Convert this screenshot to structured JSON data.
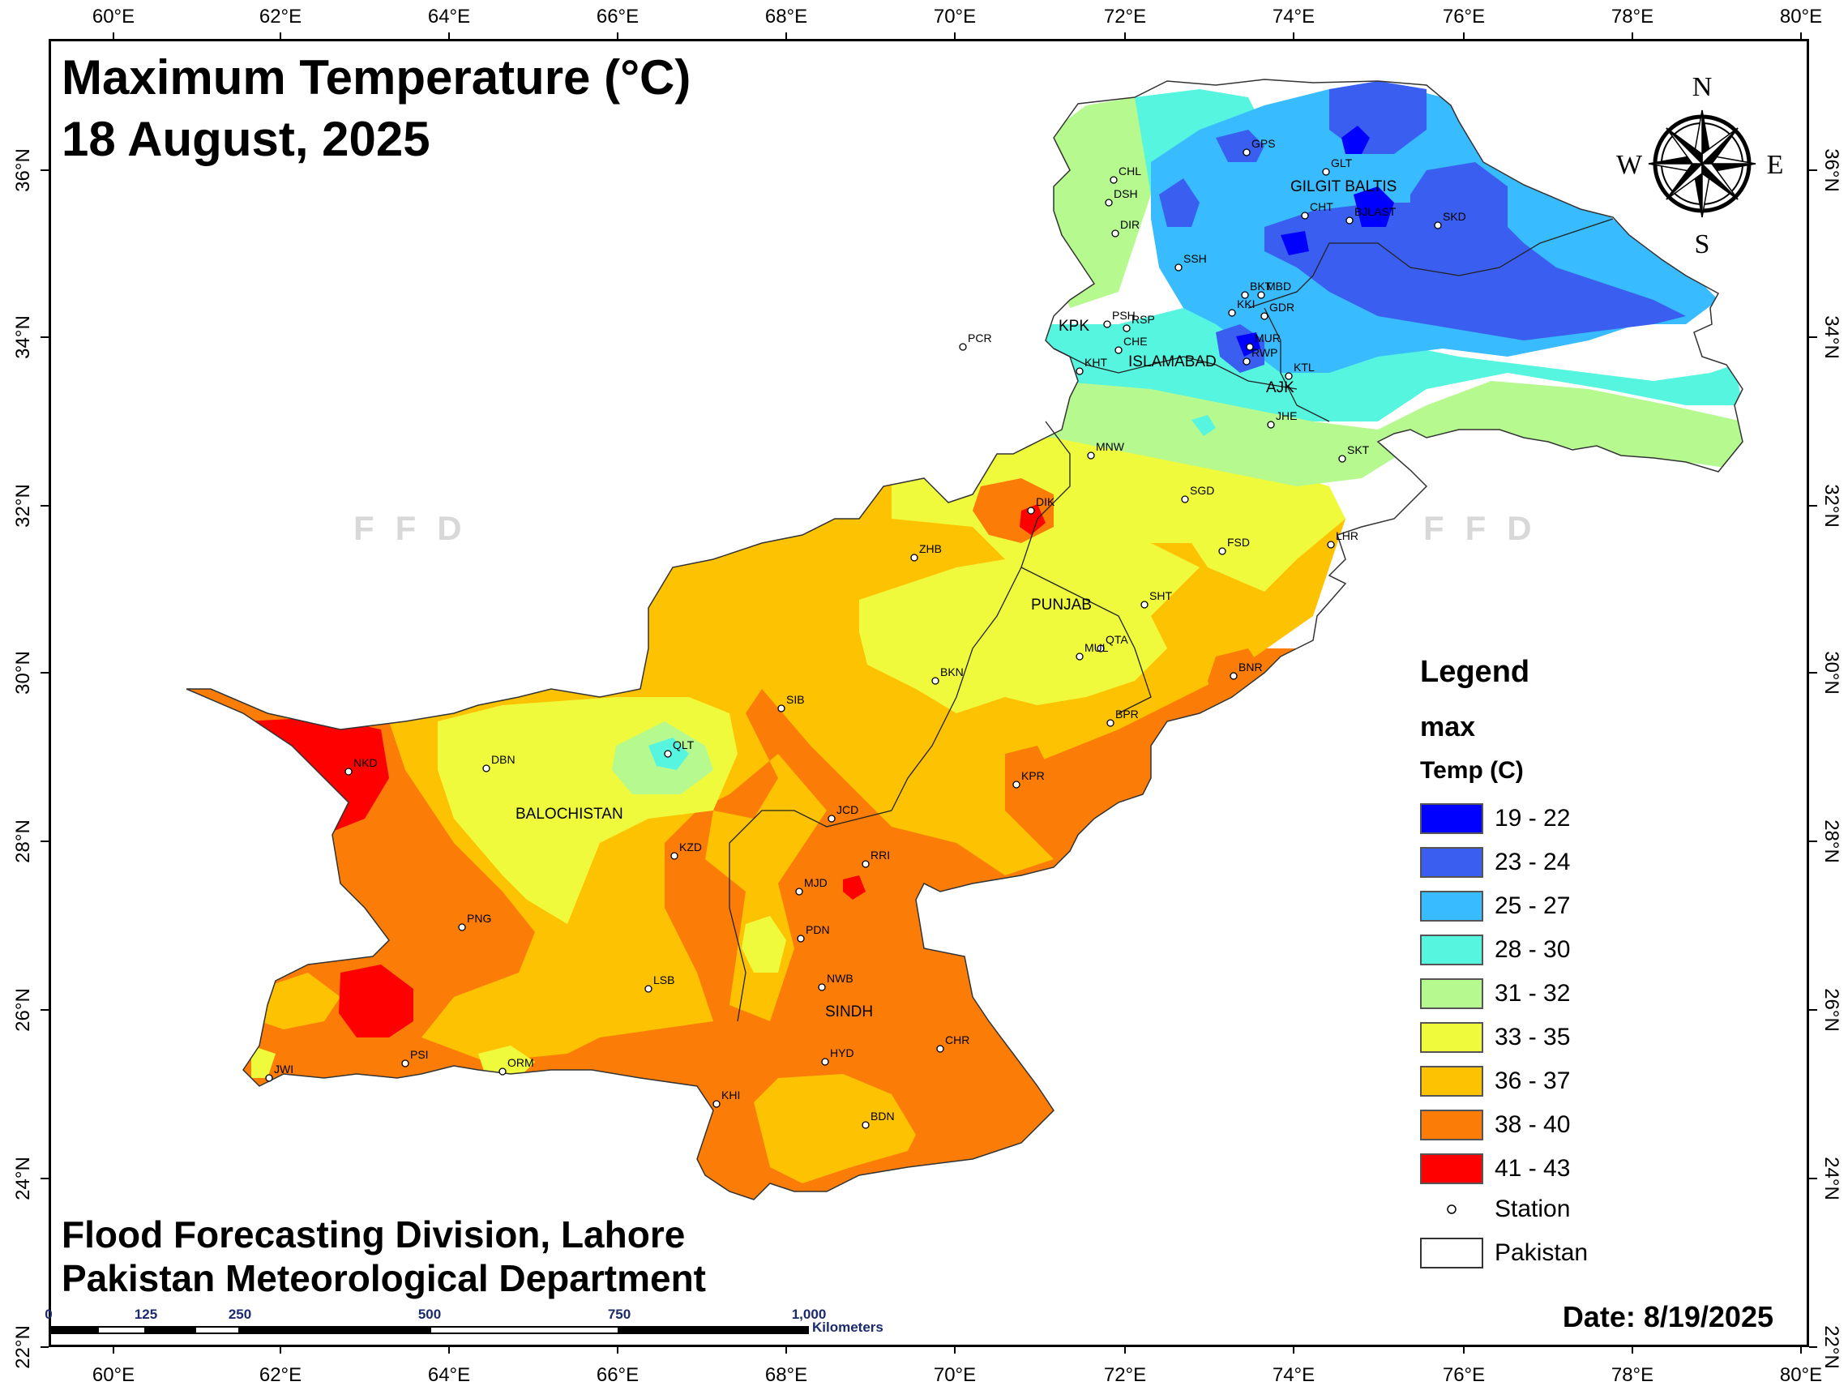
{
  "map": {
    "title_line1": "Maximum Temperature (°C)",
    "title_line2": "18 August, 2025",
    "footer_line1": "Flood Forecasting Division, Lahore",
    "footer_line2": "Pakistan Meteorological Department",
    "date": "Date: 8/19/2025",
    "watermark": "FFD"
  },
  "axes": {
    "lon_labels": [
      "60°E",
      "62°E",
      "64°E",
      "66°E",
      "68°E",
      "70°E",
      "72°E",
      "74°E",
      "76°E",
      "78°E",
      "80°E"
    ],
    "lat_labels": [
      "36°N",
      "34°N",
      "32°N",
      "30°N",
      "28°N",
      "26°N",
      "24°N",
      "22°N"
    ]
  },
  "compass": {
    "n": "N",
    "s": "S",
    "e": "E",
    "w": "W"
  },
  "legend": {
    "title": "Legend",
    "field": "max",
    "unit_title": "Temp (C)",
    "classes": [
      {
        "label": "19 - 22",
        "color": "#0000ff"
      },
      {
        "label": "23 - 24",
        "color": "#3a5ff0"
      },
      {
        "label": "25 - 27",
        "color": "#38bcff"
      },
      {
        "label": "28 - 30",
        "color": "#56f5e0"
      },
      {
        "label": "31 - 32",
        "color": "#b5f98f"
      },
      {
        "label": "33 - 35",
        "color": "#f0fa3c"
      },
      {
        "label": "36 - 37",
        "color": "#fdc202"
      },
      {
        "label": "38 - 40",
        "color": "#fb7d07"
      },
      {
        "label": "41 - 43",
        "color": "#fe0000"
      }
    ],
    "station_label": "Station",
    "pakistan_label": "Pakistan"
  },
  "scalebar": {
    "ticks": [
      "0",
      "125",
      "250",
      "500",
      "750",
      "1,000"
    ],
    "unit": "Kilometers"
  },
  "regions": {
    "gb": "GILGIT BALTIS",
    "kpk": "KPK",
    "islamabad": "ISLAMABAD",
    "ajk": "AJK",
    "punjab": "PUNJAB",
    "balochistan": "BALOCHISTAN",
    "sindh": "SINDH"
  },
  "stations": [
    "CHL",
    "DSH",
    "DIR",
    "GPS",
    "GLT",
    "CHT",
    "BJLAST",
    "SKD",
    "SSH",
    "BKT",
    "MBD",
    "KKI",
    "GDR",
    "PSH",
    "RSP",
    "CHE",
    "MUR",
    "RWP",
    "PCR",
    "KHT",
    "KTL",
    "JHE",
    "SKT",
    "MNW",
    "SGD",
    "DIK",
    "LHR",
    "FSD",
    "ZHB",
    "SHT",
    "QTA",
    "MUL",
    "BKN",
    "BNR",
    "SIB",
    "BPR",
    "NKD",
    "DBN",
    "QLT",
    "KPR",
    "JCD",
    "KZD",
    "RRI",
    "MJD",
    "PNG",
    "PDN",
    "NWB",
    "LSB",
    "CHR",
    "HYD",
    "PSI",
    "JWI",
    "ORM",
    "KHI",
    "BDN"
  ]
}
